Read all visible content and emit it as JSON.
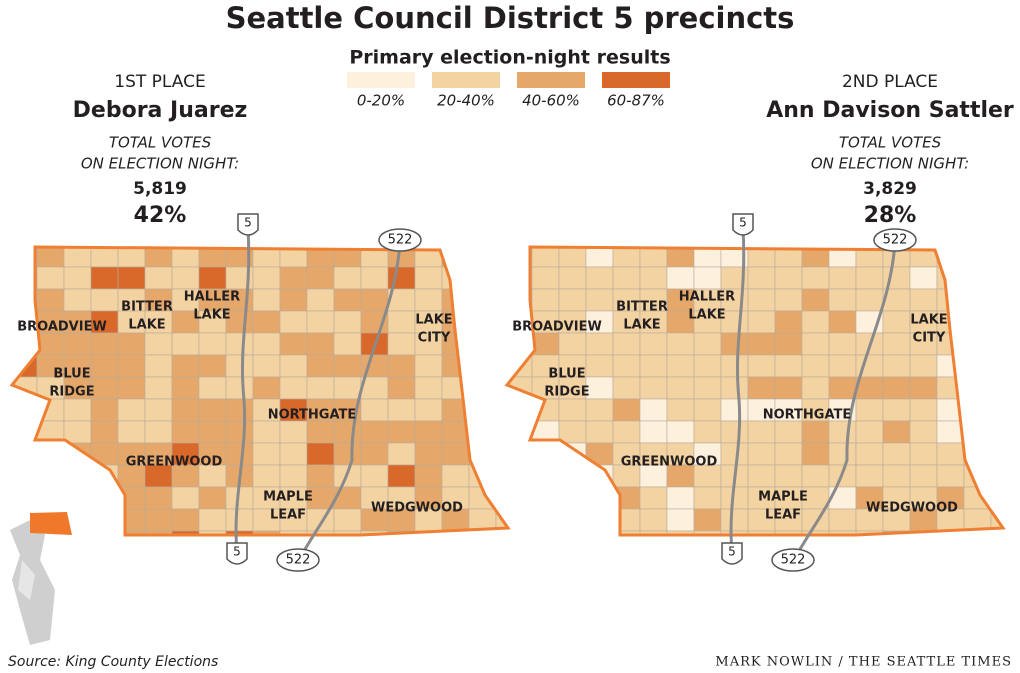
{
  "title": "Seattle Council District 5 precincts",
  "subtitle": "Primary election-night results",
  "legend": [
    {
      "label": "0-20%",
      "color": "#fdf1de"
    },
    {
      "label": "20-40%",
      "color": "#f3d3a2"
    },
    {
      "label": "40-60%",
      "color": "#e6a86a"
    },
    {
      "label": "60-87%",
      "color": "#d8692a"
    }
  ],
  "maps": [
    {
      "place": "1ST PLACE",
      "candidate": "Debora Juarez",
      "votes_label": [
        "TOTAL VOTES",
        "ON ELECTION NIGHT:"
      ],
      "votes": "5,819",
      "share": "42%",
      "neighborhoods": [
        [
          "BROADVIEW"
        ],
        [
          "BITTER",
          "LAKE"
        ],
        [
          "HALLER",
          "LAKE"
        ],
        [
          "LAKE",
          "CITY"
        ],
        [
          "BLUE",
          "RIDGE"
        ],
        [
          "NORTHGATE"
        ],
        [
          "GREENWOOD"
        ],
        [
          "MAPLE",
          "LEAF"
        ],
        [
          "WEDGWOOD"
        ]
      ],
      "highways": [
        "5",
        "522"
      ]
    },
    {
      "place": "2ND PLACE",
      "candidate": "Ann Davison Sattler",
      "votes_label": [
        "TOTAL VOTES",
        "ON ELECTION NIGHT:"
      ],
      "votes": "3,829",
      "share": "28%",
      "neighborhoods": [
        [
          "BROADVIEW"
        ],
        [
          "BITTER",
          "LAKE"
        ],
        [
          "HALLER",
          "LAKE"
        ],
        [
          "LAKE",
          "CITY"
        ],
        [
          "BLUE",
          "RIDGE"
        ],
        [
          "NORTHGATE"
        ],
        [
          "GREENWOOD"
        ],
        [
          "MAPLE",
          "LEAF"
        ],
        [
          "WEDGWOOD"
        ]
      ],
      "highways": [
        "5",
        "522"
      ]
    }
  ],
  "source": "Source: King County Elections",
  "credit": "MARK NOWLIN / THE SEATTLE TIMES"
}
